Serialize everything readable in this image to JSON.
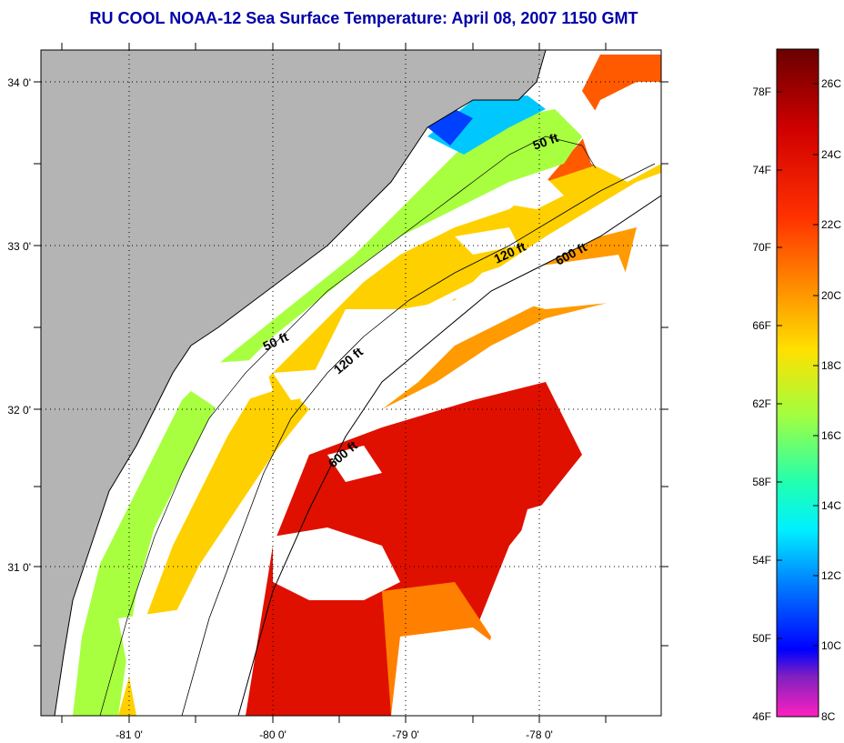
{
  "title": "RU COOL  NOAA-12  Sea Surface Temperature:  April 08, 2007 1150 GMT",
  "map": {
    "lon_labels": [
      "-81 0'",
      "-80 0'",
      "-79 0'",
      "-78 0'"
    ],
    "lat_labels": [
      "34 0'",
      "33 0'",
      "32 0'",
      "31 0'"
    ],
    "isobath_labels": [
      "50 ft",
      "120 ft",
      "600 ft",
      "50 ft",
      "120 ft",
      "600 ft"
    ],
    "colors": {
      "land": "#b4b4b4",
      "cloud": "#ffffff",
      "grid": "#000000"
    }
  },
  "colorbar": {
    "fahrenheit_labels": [
      "78F",
      "74F",
      "70F",
      "66F",
      "62F",
      "58F",
      "54F",
      "50F",
      "46F"
    ],
    "celsius_labels": [
      "26C",
      "24C",
      "22C",
      "20C",
      "18C",
      "16C",
      "14C",
      "12C",
      "10C",
      "8C"
    ]
  }
}
